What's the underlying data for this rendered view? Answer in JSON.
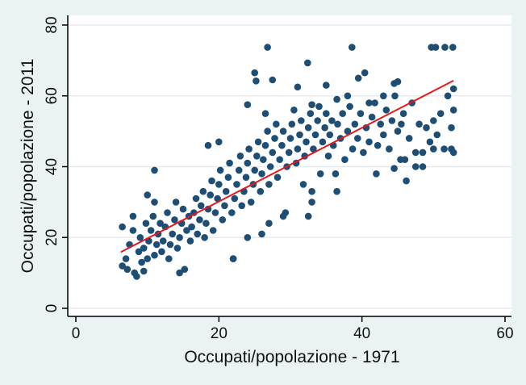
{
  "chart_data": {
    "type": "scatter",
    "title": "",
    "xlabel": "Occupati/popolazione - 1971",
    "ylabel": "Occupati/popolazione - 2011",
    "xlim": [
      0,
      60
    ],
    "ylim": [
      0,
      80
    ],
    "x_ticks": [
      0,
      20,
      40,
      60
    ],
    "y_ticks": [
      0,
      20,
      40,
      60,
      80
    ],
    "grid": "horizontal",
    "legend": "none",
    "colors": {
      "background": "#eaf2f3",
      "plot_background": "#ffffff",
      "gridline": "#e6ecee",
      "point": "#1f4e75",
      "fit_line": "#e3191c",
      "axis": "#000000"
    },
    "fit_line": {
      "type": "linear",
      "points": [
        [
          6.3,
          15.9
        ],
        [
          52.8,
          64.3
        ]
      ]
    },
    "series": [
      {
        "points": [
          [
            6.5,
            12
          ],
          [
            7,
            14
          ],
          [
            7.5,
            18
          ],
          [
            8,
            22
          ],
          [
            8.2,
            10
          ],
          [
            8.5,
            9
          ],
          [
            8.8,
            16
          ],
          [
            9,
            20
          ],
          [
            9.2,
            13
          ],
          [
            9.5,
            17
          ],
          [
            9.8,
            24
          ],
          [
            10,
            14
          ],
          [
            10.2,
            19
          ],
          [
            10.5,
            22
          ],
          [
            10.8,
            26
          ],
          [
            11,
            30
          ],
          [
            11,
            15
          ],
          [
            11.3,
            18
          ],
          [
            11.5,
            21
          ],
          [
            11.8,
            24
          ],
          [
            12,
            16
          ],
          [
            12.2,
            19
          ],
          [
            12.5,
            23
          ],
          [
            12.8,
            27
          ],
          [
            13,
            14
          ],
          [
            13.2,
            18
          ],
          [
            13.5,
            21
          ],
          [
            13.8,
            25
          ],
          [
            14,
            30
          ],
          [
            14.2,
            17
          ],
          [
            14.5,
            20
          ],
          [
            14.8,
            24
          ],
          [
            15,
            28
          ],
          [
            15.2,
            11
          ],
          [
            15.5,
            22
          ],
          [
            15.8,
            26
          ],
          [
            16,
            19
          ],
          [
            16.2,
            23
          ],
          [
            16.5,
            27
          ],
          [
            16.8,
            31
          ],
          [
            17,
            21
          ],
          [
            17.3,
            25
          ],
          [
            17.5,
            29
          ],
          [
            17.8,
            33
          ],
          [
            18,
            20
          ],
          [
            18.2,
            24
          ],
          [
            18.5,
            28
          ],
          [
            18.8,
            32
          ],
          [
            19,
            36
          ],
          [
            19.2,
            22
          ],
          [
            19.5,
            27
          ],
          [
            19.8,
            31
          ],
          [
            20,
            35
          ],
          [
            20.2,
            39
          ],
          [
            20.5,
            25
          ],
          [
            20.8,
            29
          ],
          [
            21,
            33
          ],
          [
            21.3,
            37
          ],
          [
            21.5,
            41
          ],
          [
            21.8,
            27
          ],
          [
            22,
            14
          ],
          [
            22.2,
            31
          ],
          [
            22.5,
            35
          ],
          [
            22.8,
            39
          ],
          [
            23,
            43
          ],
          [
            23.2,
            29
          ],
          [
            23.5,
            33
          ],
          [
            23.8,
            37
          ],
          [
            24,
            41
          ],
          [
            24.2,
            45
          ],
          [
            24.5,
            30
          ],
          [
            24.8,
            35
          ],
          [
            25,
            39
          ],
          [
            25.3,
            43
          ],
          [
            25.5,
            47
          ],
          [
            25.8,
            33
          ],
          [
            26,
            38
          ],
          [
            26.2,
            42
          ],
          [
            26.5,
            46
          ],
          [
            26.8,
            50
          ],
          [
            27,
            35
          ],
          [
            27.2,
            40
          ],
          [
            27.5,
            44
          ],
          [
            27.8,
            48
          ],
          [
            28,
            52
          ],
          [
            28.2,
            37
          ],
          [
            28.5,
            42
          ],
          [
            28.8,
            46
          ],
          [
            29,
            50
          ],
          [
            29.3,
            27
          ],
          [
            29.5,
            40
          ],
          [
            29.8,
            44
          ],
          [
            30,
            48
          ],
          [
            30.2,
            52
          ],
          [
            30.5,
            56
          ],
          [
            30.8,
            41
          ],
          [
            31,
            45
          ],
          [
            31.3,
            49
          ],
          [
            31.5,
            53
          ],
          [
            31.8,
            35
          ],
          [
            32,
            43
          ],
          [
            32.2,
            47
          ],
          [
            32.5,
            51
          ],
          [
            32.8,
            55
          ],
          [
            33,
            33
          ],
          [
            33.2,
            45
          ],
          [
            33.5,
            49
          ],
          [
            33.8,
            53
          ],
          [
            34,
            57
          ],
          [
            34.2,
            38
          ],
          [
            34.5,
            47
          ],
          [
            34.8,
            51
          ],
          [
            35,
            55
          ],
          [
            35.3,
            43
          ],
          [
            35.5,
            49
          ],
          [
            35.8,
            53
          ],
          [
            36,
            46
          ],
          [
            36.3,
            38
          ],
          [
            36.6,
            52
          ],
          [
            37,
            48
          ],
          [
            37.3,
            55
          ],
          [
            37.6,
            42
          ],
          [
            38,
            50
          ],
          [
            38.3,
            57
          ],
          [
            38.7,
            45
          ],
          [
            39,
            52
          ],
          [
            39.4,
            48
          ],
          [
            39.8,
            55
          ],
          [
            40.2,
            44
          ],
          [
            40.6,
            51
          ],
          [
            41,
            47
          ],
          [
            41.4,
            54
          ],
          [
            41.8,
            58
          ],
          [
            42.2,
            46
          ],
          [
            42.6,
            52
          ],
          [
            43,
            49
          ],
          [
            43.4,
            56
          ],
          [
            43.8,
            45
          ],
          [
            44.2,
            53
          ],
          [
            44.6,
            60
          ],
          [
            45,
            50
          ],
          [
            45.4,
            42
          ],
          [
            45.8,
            55
          ],
          [
            46.2,
            36
          ],
          [
            46.6,
            48
          ],
          [
            47,
            58
          ],
          [
            47.5,
            44
          ],
          [
            48,
            52
          ],
          [
            48.5,
            40
          ],
          [
            49,
            51
          ],
          [
            49.5,
            47
          ],
          [
            50,
            53
          ],
          [
            50.5,
            49
          ],
          [
            51,
            55
          ],
          [
            51.5,
            45
          ],
          [
            52,
            60
          ],
          [
            52.5,
            51
          ],
          [
            52.8,
            44
          ],
          [
            52.8,
            56
          ],
          [
            52.8,
            62
          ],
          [
            26.8,
            73.7
          ],
          [
            38.6,
            73.7
          ],
          [
            49.7,
            73.7
          ],
          [
            50.3,
            73.7
          ],
          [
            51.6,
            73.7
          ],
          [
            52.7,
            73.7
          ],
          [
            32.4,
            69.3
          ],
          [
            25,
            66.5
          ],
          [
            25.2,
            64.2
          ],
          [
            27.5,
            64.5
          ],
          [
            31,
            62.5
          ],
          [
            35,
            63
          ],
          [
            38,
            60
          ],
          [
            39.5,
            65
          ],
          [
            40.4,
            66.5
          ],
          [
            44.5,
            63.5
          ],
          [
            45,
            64
          ],
          [
            43,
            60
          ],
          [
            41,
            58
          ],
          [
            36.5,
            59
          ],
          [
            33,
            57.5
          ],
          [
            24,
            57.5
          ],
          [
            26.5,
            55
          ],
          [
            20,
            47
          ],
          [
            18.5,
            46
          ],
          [
            11,
            39
          ],
          [
            10,
            32
          ],
          [
            8,
            26
          ],
          [
            6.5,
            23
          ],
          [
            7.2,
            11
          ],
          [
            9.5,
            10.5
          ],
          [
            14.5,
            10
          ],
          [
            22,
            14
          ],
          [
            24,
            20
          ],
          [
            26,
            21
          ],
          [
            27,
            24
          ],
          [
            29,
            26
          ],
          [
            32.5,
            26
          ],
          [
            33,
            30
          ],
          [
            36.5,
            33
          ],
          [
            42,
            38
          ],
          [
            44.5,
            39.5
          ],
          [
            46,
            42
          ],
          [
            47.5,
            40
          ],
          [
            48.5,
            44
          ],
          [
            50,
            45
          ],
          [
            52.5,
            45
          ],
          [
            45.5,
            52
          ]
        ]
      }
    ]
  }
}
